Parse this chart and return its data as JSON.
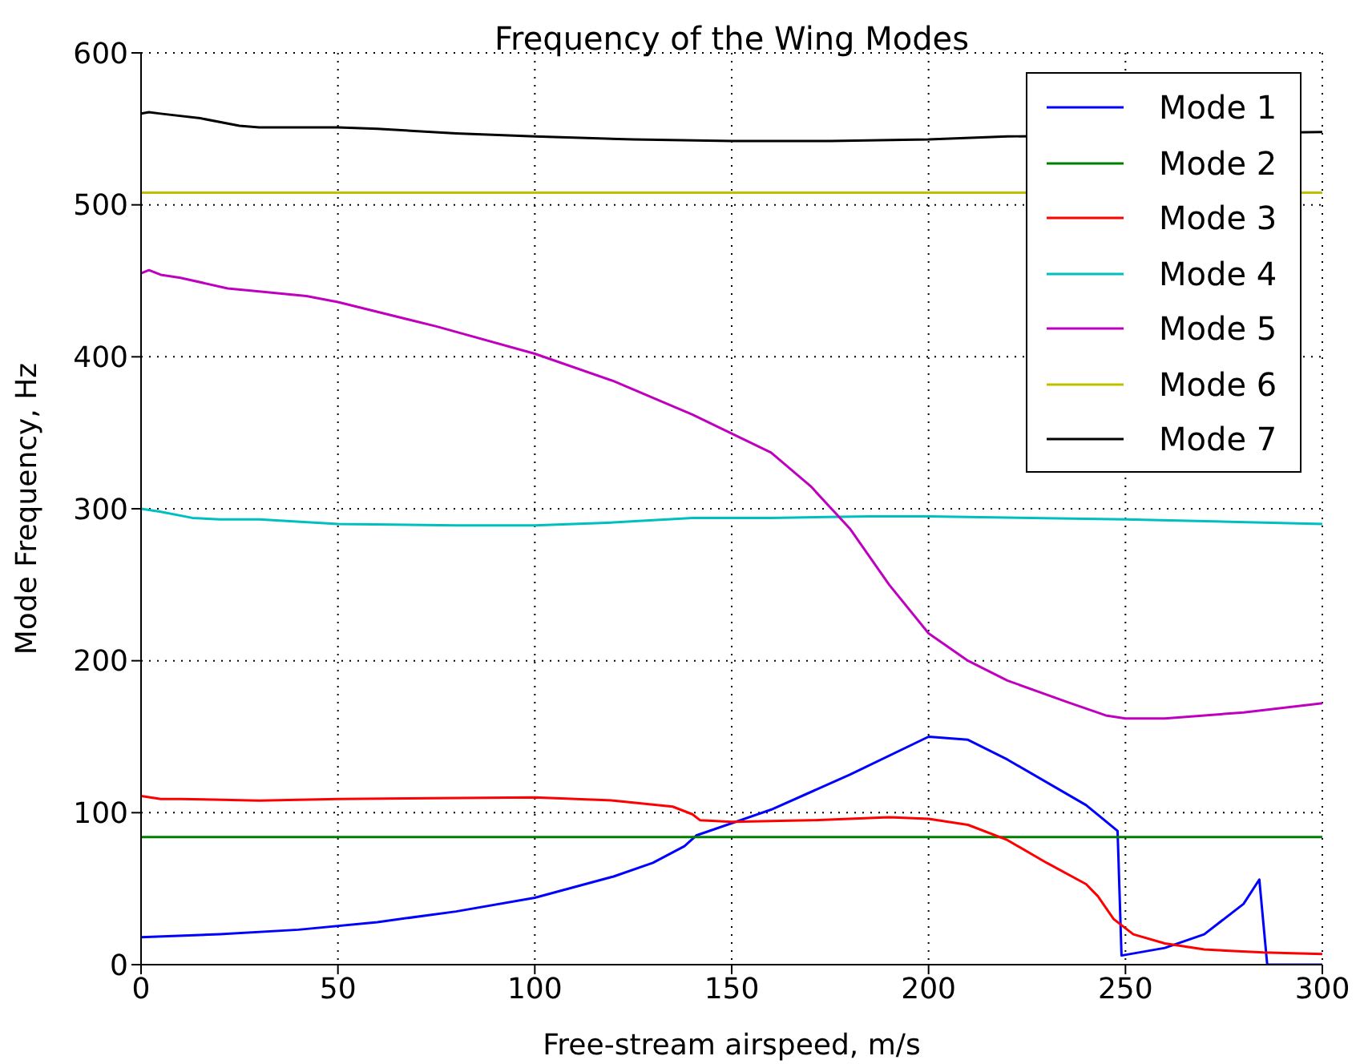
{
  "chart_data": {
    "type": "line",
    "title": "Frequency of the Wing Modes",
    "xlabel": "Free-stream airspeed, m/s",
    "ylabel": "Mode Frequency, Hz",
    "xlim": [
      0,
      300
    ],
    "xticks": [
      0,
      50,
      100,
      150,
      200,
      250,
      300
    ],
    "ylim": [
      0,
      600
    ],
    "yticks": [
      0,
      100,
      200,
      300,
      400,
      500,
      600
    ],
    "grid": true,
    "legend": "top right",
    "marker": "none",
    "line_style": "solid",
    "series": [
      {
        "name": "Mode 1",
        "color": "#0000ff",
        "x": [
          0,
          20,
          40,
          60,
          80,
          100,
          120,
          130,
          138,
          141,
          160,
          180,
          200,
          210,
          220,
          240,
          248,
          249,
          260,
          270,
          280,
          284,
          286,
          300
        ],
        "values": [
          18,
          20,
          23,
          28,
          35,
          44,
          58,
          67,
          78,
          85,
          102,
          125,
          150,
          148,
          135,
          105,
          88,
          6,
          11,
          20,
          40,
          56,
          0,
          0
        ]
      },
      {
        "name": "Mode 2",
        "color": "#008000",
        "x": [
          0,
          300
        ],
        "values": [
          84,
          84
        ]
      },
      {
        "name": "Mode 3",
        "color": "#ff0000",
        "x": [
          0,
          5,
          10,
          30,
          50,
          100,
          120,
          135,
          140,
          142,
          150,
          170,
          190,
          200,
          210,
          220,
          230,
          240,
          243,
          247,
          252,
          260,
          270,
          285,
          300
        ],
        "values": [
          111,
          109,
          109,
          108,
          109,
          110,
          108,
          104,
          99,
          95,
          94,
          95,
          97,
          96,
          92,
          82,
          67,
          53,
          45,
          30,
          20,
          14,
          10,
          8,
          7
        ]
      },
      {
        "name": "Mode 4",
        "color": "#00bfbf",
        "x": [
          0,
          5,
          13,
          20,
          30,
          50,
          80,
          100,
          120,
          140,
          160,
          185,
          200,
          250,
          300
        ],
        "values": [
          300,
          298,
          294,
          293,
          293,
          290,
          289,
          289,
          291,
          294,
          294,
          295,
          295,
          293,
          290
        ]
      },
      {
        "name": "Mode 5",
        "color": "#bf00bf",
        "x": [
          0,
          2,
          5,
          10,
          22,
          30,
          42,
          50,
          75,
          100,
          120,
          140,
          160,
          170,
          180,
          190,
          200,
          210,
          220,
          235,
          245,
          250,
          260,
          280,
          300
        ],
        "values": [
          455,
          457,
          454,
          452,
          445,
          443,
          440,
          436,
          420,
          402,
          384,
          362,
          337,
          315,
          287,
          250,
          218,
          200,
          187,
          173,
          164,
          162,
          162,
          166,
          172
        ]
      },
      {
        "name": "Mode 6",
        "color": "#bfbf00",
        "x": [
          0,
          300
        ],
        "values": [
          508,
          508
        ]
      },
      {
        "name": "Mode 7",
        "color": "#000000",
        "x": [
          0,
          2,
          5,
          15,
          25,
          30,
          50,
          60,
          80,
          100,
          125,
          150,
          175,
          200,
          220,
          300
        ],
        "values": [
          560,
          561,
          560,
          557,
          552,
          551,
          551,
          550,
          547,
          545,
          543,
          542,
          542,
          543,
          545,
          548
        ]
      }
    ]
  }
}
